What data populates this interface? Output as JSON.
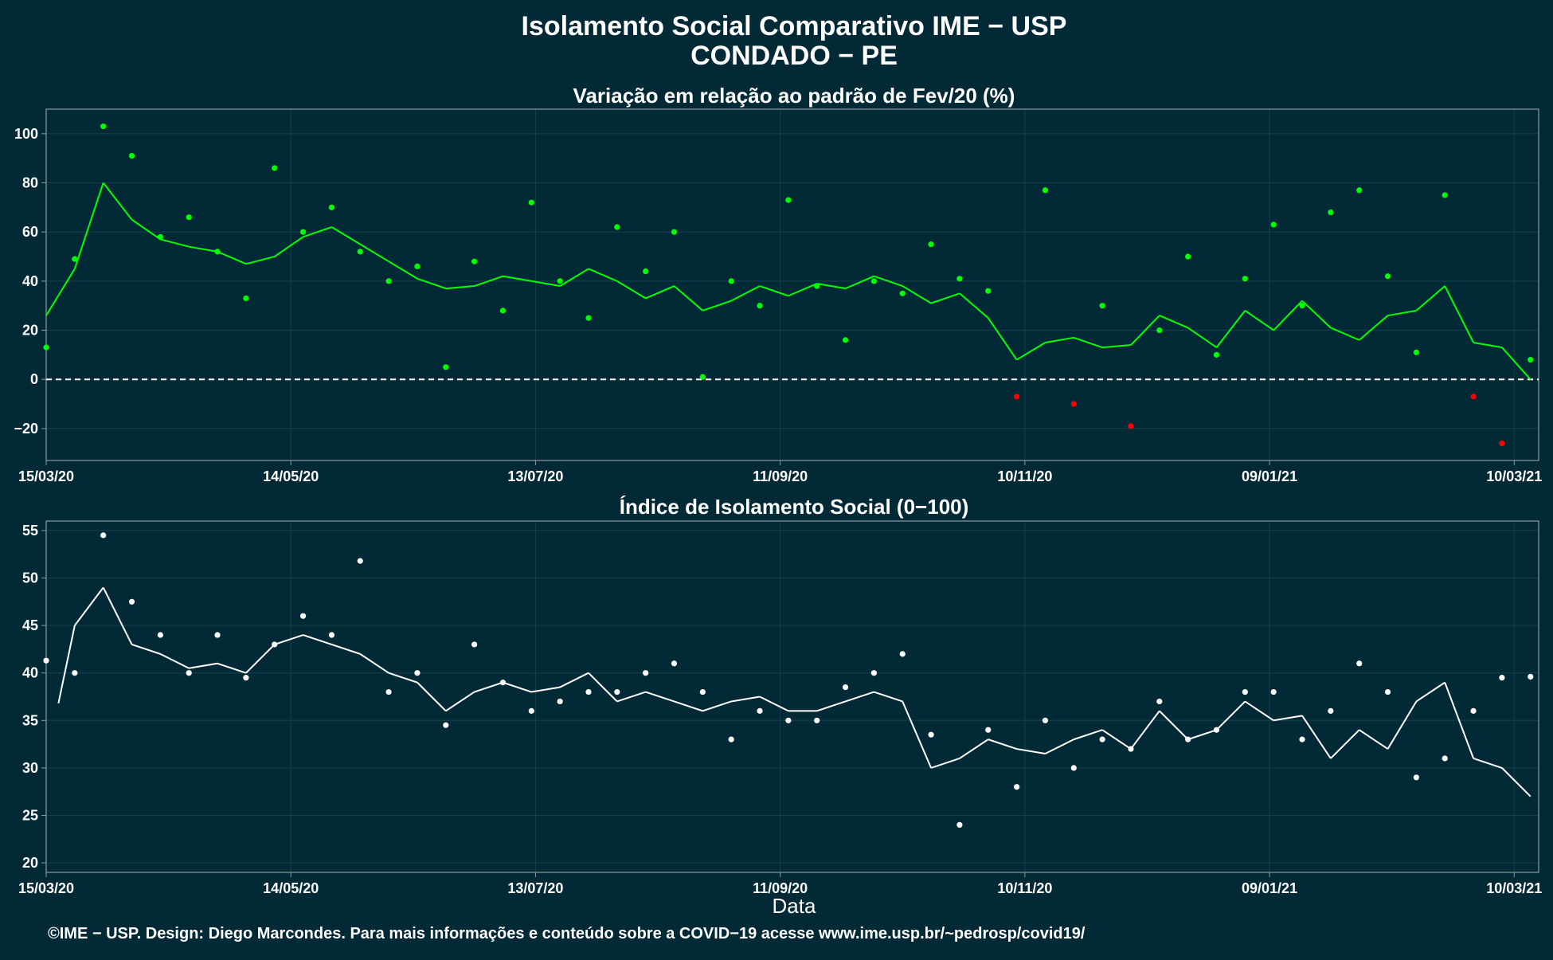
{
  "header": {
    "title": "Isolamento Social Comparativo IME − USP",
    "subtitle": "CONDADO − PE"
  },
  "footer": {
    "credit": "©IME − USP. Design: Diego Marcondes. Para mais informações e conteúdo sobre a COVID−19 acesse www.ime.usp.br/~pedrosp/covid19/"
  },
  "colors": {
    "background": "#022a36",
    "panel_border": "#8a9aa0",
    "grid": "#14404c",
    "positive": "#00ff00",
    "negative": "#ff0000",
    "index_series": "#ffffff"
  },
  "chart_data": [
    {
      "type": "scatter",
      "title": "Variação em relação ao padrão de Fev/20 (%)",
      "xlabel": "",
      "ylabel": "",
      "xlim": [
        "2020-03-15",
        "2021-03-16"
      ],
      "ylim": [
        -33,
        110
      ],
      "y_ticks": [
        -20,
        0,
        20,
        40,
        60,
        80,
        100
      ],
      "x_ticks": [
        "15/03/20",
        "14/05/20",
        "13/07/20",
        "11/09/20",
        "10/11/20",
        "09/01/21",
        "10/03/21"
      ],
      "reference_line": {
        "y": 0,
        "style": "dashed"
      },
      "grid": true,
      "series": [
        {
          "kind": "points",
          "note": "daily variation (%), weekly sampled; green when >= 0, red when < 0",
          "x": [
            "2020-03-15",
            "2020-03-22",
            "2020-03-29",
            "2020-04-05",
            "2020-04-12",
            "2020-04-19",
            "2020-04-26",
            "2020-05-03",
            "2020-05-10",
            "2020-05-17",
            "2020-05-24",
            "2020-05-31",
            "2020-06-07",
            "2020-06-14",
            "2020-06-21",
            "2020-06-28",
            "2020-07-05",
            "2020-07-12",
            "2020-07-19",
            "2020-07-26",
            "2020-08-02",
            "2020-08-09",
            "2020-08-16",
            "2020-08-23",
            "2020-08-30",
            "2020-09-06",
            "2020-09-13",
            "2020-09-20",
            "2020-09-27",
            "2020-10-04",
            "2020-10-11",
            "2020-10-18",
            "2020-10-25",
            "2020-11-01",
            "2020-11-08",
            "2020-11-15",
            "2020-11-22",
            "2020-11-29",
            "2020-12-06",
            "2020-12-13",
            "2020-12-20",
            "2020-12-27",
            "2021-01-03",
            "2021-01-10",
            "2021-01-17",
            "2021-01-24",
            "2021-01-31",
            "2021-02-07",
            "2021-02-14",
            "2021-02-21",
            "2021-02-28",
            "2021-03-07",
            "2021-03-14"
          ],
          "y": [
            13,
            49,
            103,
            91,
            58,
            66,
            52,
            33,
            86,
            60,
            70,
            52,
            40,
            46,
            5,
            48,
            28,
            72,
            40,
            25,
            62,
            44,
            60,
            1,
            40,
            30,
            73,
            38,
            16,
            40,
            35,
            55,
            41,
            36,
            -7,
            77,
            -10,
            30,
            -19,
            20,
            50,
            10,
            41,
            63,
            30,
            68,
            77,
            42,
            11,
            75,
            -7,
            -26,
            8
          ]
        },
        {
          "kind": "line",
          "name": "",
          "note": "7-day moving average; green when >= 0, red when < 0",
          "x": [
            "2020-03-15",
            "2020-03-22",
            "2020-03-29",
            "2020-04-05",
            "2020-04-12",
            "2020-04-19",
            "2020-04-26",
            "2020-05-03",
            "2020-05-10",
            "2020-05-17",
            "2020-05-24",
            "2020-05-31",
            "2020-06-07",
            "2020-06-14",
            "2020-06-21",
            "2020-06-28",
            "2020-07-05",
            "2020-07-12",
            "2020-07-19",
            "2020-07-26",
            "2020-08-02",
            "2020-08-09",
            "2020-08-16",
            "2020-08-23",
            "2020-08-30",
            "2020-09-06",
            "2020-09-13",
            "2020-09-20",
            "2020-09-27",
            "2020-10-04",
            "2020-10-11",
            "2020-10-18",
            "2020-10-25",
            "2020-11-01",
            "2020-11-08",
            "2020-11-15",
            "2020-11-22",
            "2020-11-29",
            "2020-12-06",
            "2020-12-13",
            "2020-12-20",
            "2020-12-27",
            "2021-01-03",
            "2021-01-10",
            "2021-01-17",
            "2021-01-24",
            "2021-01-31",
            "2021-02-07",
            "2021-02-14",
            "2021-02-21",
            "2021-02-28",
            "2021-03-07",
            "2021-03-14"
          ],
          "y": [
            26,
            45,
            80,
            65,
            57,
            54,
            52,
            47,
            50,
            58,
            62,
            55,
            48,
            41,
            37,
            38,
            42,
            40,
            38,
            45,
            40,
            33,
            38,
            28,
            32,
            38,
            34,
            39,
            37,
            42,
            38,
            31,
            35,
            25,
            8,
            15,
            17,
            13,
            14,
            26,
            21,
            13,
            28,
            20,
            32,
            21,
            16,
            26,
            28,
            38,
            15,
            13,
            0
          ]
        }
      ]
    },
    {
      "type": "scatter",
      "title": "Índice de Isolamento Social (0−100)",
      "xlabel": "Data",
      "ylabel": "",
      "xlim": [
        "2020-03-15",
        "2021-03-16"
      ],
      "ylim": [
        19,
        56
      ],
      "y_ticks": [
        20,
        25,
        30,
        35,
        40,
        45,
        50,
        55
      ],
      "x_ticks": [
        "15/03/20",
        "14/05/20",
        "13/07/20",
        "11/09/20",
        "10/11/20",
        "09/01/21",
        "10/03/21"
      ],
      "grid": true,
      "series": [
        {
          "kind": "points",
          "note": "daily index, weekly sampled",
          "x": [
            "2020-03-15",
            "2020-03-22",
            "2020-03-29",
            "2020-04-05",
            "2020-04-12",
            "2020-04-19",
            "2020-04-26",
            "2020-05-03",
            "2020-05-10",
            "2020-05-17",
            "2020-05-24",
            "2020-05-31",
            "2020-06-07",
            "2020-06-14",
            "2020-06-21",
            "2020-06-28",
            "2020-07-05",
            "2020-07-12",
            "2020-07-19",
            "2020-07-26",
            "2020-08-02",
            "2020-08-09",
            "2020-08-16",
            "2020-08-23",
            "2020-08-30",
            "2020-09-06",
            "2020-09-13",
            "2020-09-20",
            "2020-09-27",
            "2020-10-04",
            "2020-10-11",
            "2020-10-18",
            "2020-10-25",
            "2020-11-01",
            "2020-11-08",
            "2020-11-15",
            "2020-11-22",
            "2020-11-29",
            "2020-12-06",
            "2020-12-13",
            "2020-12-20",
            "2020-12-27",
            "2021-01-03",
            "2021-01-10",
            "2021-01-17",
            "2021-01-24",
            "2021-01-31",
            "2021-02-07",
            "2021-02-14",
            "2021-02-21",
            "2021-02-28",
            "2021-03-07",
            "2021-03-14"
          ],
          "y": [
            41.3,
            40,
            54.5,
            47.5,
            44,
            40,
            44,
            39.5,
            43,
            46,
            44,
            51.8,
            38,
            40,
            34.5,
            43,
            39,
            36,
            37,
            38,
            38,
            40,
            41,
            38,
            33,
            36,
            35,
            35,
            38.5,
            40,
            42,
            33.5,
            24,
            34,
            28,
            35,
            30,
            33,
            32,
            37,
            33,
            34,
            38,
            38,
            33,
            36,
            41,
            38,
            29,
            31,
            36,
            39.5,
            39.6
          ]
        },
        {
          "kind": "line",
          "name": "",
          "note": "7-day moving average",
          "x": [
            "2020-03-18",
            "2020-03-22",
            "2020-03-29",
            "2020-04-05",
            "2020-04-12",
            "2020-04-19",
            "2020-04-26",
            "2020-05-03",
            "2020-05-10",
            "2020-05-17",
            "2020-05-24",
            "2020-05-31",
            "2020-06-07",
            "2020-06-14",
            "2020-06-21",
            "2020-06-28",
            "2020-07-05",
            "2020-07-12",
            "2020-07-19",
            "2020-07-26",
            "2020-08-02",
            "2020-08-09",
            "2020-08-16",
            "2020-08-23",
            "2020-08-30",
            "2020-09-06",
            "2020-09-13",
            "2020-09-20",
            "2020-09-27",
            "2020-10-04",
            "2020-10-11",
            "2020-10-18",
            "2020-10-25",
            "2020-11-01",
            "2020-11-08",
            "2020-11-15",
            "2020-11-22",
            "2020-11-29",
            "2020-12-06",
            "2020-12-13",
            "2020-12-20",
            "2020-12-27",
            "2021-01-03",
            "2021-01-10",
            "2021-01-17",
            "2021-01-24",
            "2021-01-31",
            "2021-02-07",
            "2021-02-14",
            "2021-02-21",
            "2021-02-28",
            "2021-03-07",
            "2021-03-14"
          ],
          "y": [
            36.8,
            45,
            49,
            43,
            42,
            40.5,
            41,
            40,
            43,
            44,
            43,
            42,
            40,
            39,
            36,
            38,
            39,
            38,
            38.5,
            40,
            37,
            38,
            37,
            36,
            37,
            37.5,
            36,
            36,
            37,
            38,
            37,
            30,
            31,
            33,
            32,
            31.5,
            33,
            34,
            32,
            36,
            33,
            34,
            37,
            35,
            35.5,
            31,
            34,
            32,
            37,
            39,
            31,
            30,
            27
          ]
        }
      ]
    }
  ]
}
